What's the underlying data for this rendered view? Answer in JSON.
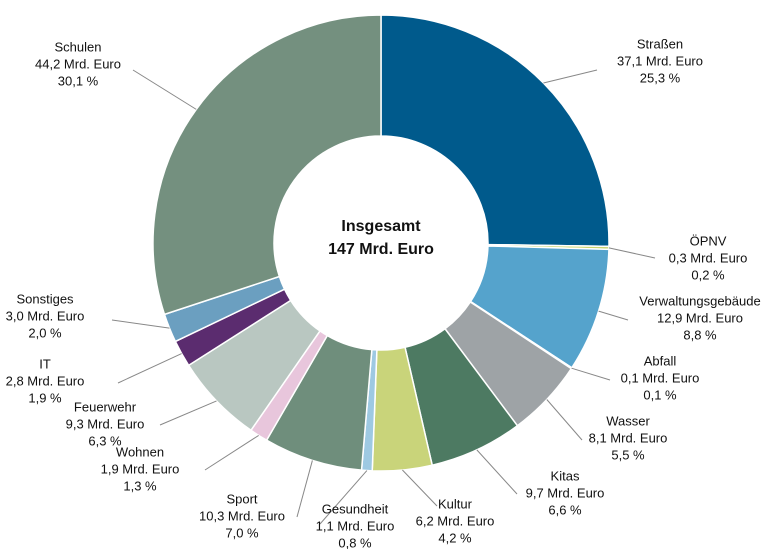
{
  "chart_data": {
    "type": "donut",
    "center_label": [
      "Insgesamt",
      "147 Mrd. Euro"
    ],
    "categories": [
      "Straßen",
      "ÖPNV",
      "Verwaltungsgebäude",
      "Abfall",
      "Wasser",
      "Kitas",
      "Kultur",
      "Gesundheit",
      "Sport",
      "Wohnen",
      "Feuerwehr",
      "IT",
      "Sonstiges",
      "Schulen"
    ],
    "values": [
      37.1,
      0.3,
      12.9,
      0.1,
      8.1,
      9.7,
      6.2,
      1.1,
      10.3,
      1.9,
      9.3,
      2.8,
      3.0,
      44.2
    ],
    "value_labels": [
      "37,1 Mrd. Euro",
      "0,3 Mrd. Euro",
      "12,9 Mrd. Euro",
      "0,1 Mrd. Euro",
      "8,1 Mrd. Euro",
      "9,7 Mrd. Euro",
      "6,2 Mrd. Euro",
      "1,1 Mrd. Euro",
      "10,3 Mrd. Euro",
      "1,9 Mrd. Euro",
      "9,3 Mrd. Euro",
      "2,8 Mrd. Euro",
      "3,0 Mrd. Euro",
      "44,2 Mrd. Euro"
    ],
    "percentages": [
      25.3,
      0.2,
      8.8,
      0.1,
      5.5,
      6.6,
      4.2,
      0.8,
      7.0,
      1.3,
      6.3,
      1.9,
      2.0,
      30.1
    ],
    "percentage_labels": [
      "25,3 %",
      "0,2 %",
      "8,8 %",
      "0,1 %",
      "5,5 %",
      "6,6 %",
      "4,2 %",
      "0,8 %",
      "7,0 %",
      "1,3 %",
      "6,3 %",
      "1,9 %",
      "2,0 %",
      "30,1 %"
    ],
    "colors": [
      "#005a8c",
      "#c9d46f",
      "#55a3cc",
      "#e8ecee",
      "#9ea3a6",
      "#4d7a62",
      "#c9d47a",
      "#9ec9e2",
      "#6f8e7c",
      "#e8c6dc",
      "#b9c7c1",
      "#5b2c6f",
      "#6b9fc0",
      "#74907f"
    ]
  }
}
